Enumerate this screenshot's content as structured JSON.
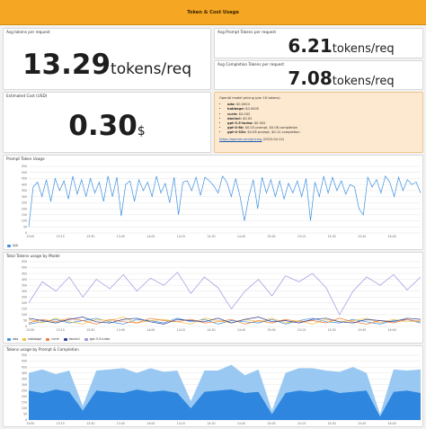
{
  "header": {
    "title": "Token & Cost Usage"
  },
  "avg_tokens": {
    "title": "Avg tokens per request",
    "value": "13.29",
    "unit": "tokens/req"
  },
  "avg_prompt": {
    "title": "Avg Prompt Tokens per request",
    "value": "6.21",
    "unit": "tokens/req"
  },
  "avg_completion": {
    "title": "Avg Completion Tokens per request",
    "value": "7.08",
    "unit": "tokens/req"
  },
  "cost": {
    "title": "Estimated Cost (USD)",
    "value": "0.30",
    "unit": "$"
  },
  "pricing_note": {
    "heading": "OpenAI model pricing (per 1K tokens)",
    "items": [
      {
        "model": "ada",
        "price": "$0.0004"
      },
      {
        "model": "babbage",
        "price": "$0.0005"
      },
      {
        "model": "curie",
        "price": "$0.002"
      },
      {
        "model": "davinci",
        "price": "$0.02"
      },
      {
        "model": "gpt-3.5-turbo",
        "price": "$0.002"
      },
      {
        "model": "gpt-4-8k",
        "price": "$0.03 prompt, $0.06 completion"
      },
      {
        "model": "gpt-4-32k",
        "price": "$0.06 prompt, $0.12 completion"
      }
    ],
    "link": "https://openai.com/pricing",
    "link_suffix": "(2023-04-12)"
  },
  "colors": {
    "header": "#f5a623",
    "series_blue": "#3c8fe0",
    "series_purple": "#a58fe0",
    "series_yellow": "#f0c040",
    "series_orange": "#f07a30",
    "series_navy": "#2f3c8c",
    "series_lightblue": "#7fb6f0",
    "series_teal": "#3aa0a0",
    "area_dark": "#2e86de",
    "area_light": "#8ec3f2"
  },
  "x_ticks": [
    "13:00",
    "13:15",
    "13:30",
    "13:45",
    "14:00",
    "14:15",
    "14:30",
    "14:45",
    "15:00",
    "15:15",
    "15:30",
    "15:45",
    "16:00"
  ],
  "chart_data": [
    {
      "type": "line",
      "title": "Prompt Token Usage",
      "ylim": [
        0,
        550
      ],
      "yticks": [
        "550",
        "500",
        "450",
        "400",
        "350",
        "300",
        "250",
        "200",
        "150",
        "100",
        "50",
        "0"
      ],
      "grid": true,
      "legend": "bottom-left",
      "series": [
        {
          "name": "N/A",
          "color": "#3c8fe0",
          "values": [
            50,
            380,
            420,
            300,
            440,
            260,
            450,
            350,
            430,
            280,
            470,
            320,
            440,
            300,
            450,
            330,
            420,
            260,
            470,
            300,
            460,
            140,
            400,
            430,
            260,
            440,
            350,
            420,
            300,
            470,
            330,
            410,
            250,
            460,
            150,
            420,
            430,
            350,
            460,
            310,
            460,
            430,
            390,
            330,
            470,
            420,
            300,
            450,
            300,
            100,
            300,
            440,
            200,
            460,
            330,
            440,
            300,
            430,
            280,
            410,
            330,
            430,
            300,
            450,
            100,
            420,
            300,
            470,
            330,
            460,
            350,
            430,
            320,
            400,
            380,
            200,
            150,
            460,
            380,
            440,
            330,
            470,
            420,
            300,
            460,
            350,
            440,
            400,
            420,
            330
          ]
        }
      ]
    },
    {
      "type": "line",
      "title": "Total Tokens usage by Model",
      "ylim": [
        0,
        550
      ],
      "yticks": [
        "550",
        "500",
        "450",
        "400",
        "350",
        "300",
        "250",
        "200",
        "150",
        "100",
        "50",
        "0"
      ],
      "grid": true,
      "legend": "bottom-left",
      "series": [
        {
          "name": "ada",
          "color": "#3c8fe0",
          "values": [
            20,
            40,
            60,
            30,
            50,
            70,
            40,
            20,
            60,
            50,
            30,
            70,
            40,
            60,
            20,
            50,
            40,
            30,
            60,
            20,
            50,
            70,
            40,
            30,
            60,
            40,
            20,
            50,
            60,
            30
          ]
        },
        {
          "name": "babbage",
          "color": "#f0c040",
          "values": [
            60,
            30,
            70,
            40,
            20,
            60,
            50,
            80,
            30,
            50,
            60,
            40,
            20,
            70,
            50,
            30,
            60,
            40,
            70,
            30,
            50,
            20,
            60,
            40,
            50,
            70,
            30,
            60,
            40,
            50
          ]
        },
        {
          "name": "curie",
          "color": "#f07a30",
          "values": [
            30,
            60,
            40,
            70,
            50,
            20,
            60,
            40,
            30,
            70,
            50,
            40,
            60,
            30,
            40,
            60,
            20,
            50,
            30,
            60,
            40,
            50,
            30,
            70,
            40,
            20,
            50,
            30,
            60,
            40
          ]
        },
        {
          "name": "davinci",
          "color": "#2f3c8c",
          "values": [
            70,
            50,
            30,
            60,
            80,
            40,
            30,
            60,
            70,
            40,
            20,
            60,
            50,
            40,
            70,
            30,
            60,
            80,
            40,
            50,
            30,
            60,
            70,
            40,
            30,
            60,
            50,
            40,
            70,
            60
          ]
        },
        {
          "name": "gpt-3.5-turbo",
          "color": "#a58fe0",
          "values": [
            200,
            380,
            300,
            420,
            250,
            400,
            320,
            440,
            300,
            410,
            350,
            460,
            280,
            420,
            330,
            150,
            300,
            400,
            260,
            430,
            380,
            450,
            330,
            100,
            300,
            420,
            350,
            440,
            310,
            420
          ]
        }
      ]
    },
    {
      "type": "area",
      "title": "Tokens usage by Prompt & Completion",
      "ylim": [
        0,
        550
      ],
      "yticks": [
        "550",
        "500",
        "450",
        "400",
        "350",
        "300",
        "250",
        "200",
        "150",
        "100",
        "50",
        "0"
      ],
      "grid": true,
      "legend": "bottom-left",
      "series": [
        {
          "name": "prompt",
          "color": "#2e86de",
          "values": [
            250,
            230,
            260,
            240,
            80,
            250,
            240,
            230,
            260,
            240,
            250,
            230,
            100,
            240,
            250,
            260,
            230,
            240,
            50,
            230,
            250,
            240,
            260,
            230,
            240,
            250,
            30,
            240,
            250,
            230
          ]
        },
        {
          "name": "completion",
          "color": "#8ec3f2",
          "values": [
            150,
            200,
            130,
            180,
            40,
            170,
            190,
            210,
            140,
            200,
            160,
            190,
            60,
            180,
            170,
            210,
            150,
            190,
            30,
            170,
            190,
            200,
            160,
            180,
            210,
            150,
            20,
            190,
            170,
            200
          ]
        }
      ]
    }
  ]
}
